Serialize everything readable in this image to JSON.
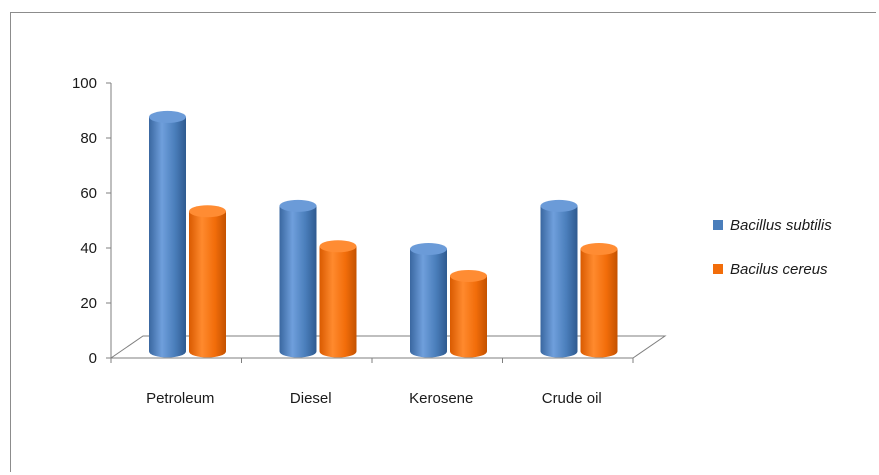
{
  "chart_data": {
    "type": "bar",
    "categories": [
      "Petroleum",
      "Diesel",
      "Kerosene",
      "Crude oil"
    ],
    "series": [
      {
        "name": "Bacillus subtilis",
        "values": [
          87,
          54,
          38,
          54
        ],
        "color": "#4a7ebb"
      },
      {
        "name": "Bacilus cereus",
        "values": [
          52,
          39,
          28,
          38
        ],
        "color": "#f26d0a"
      }
    ],
    "ylim": [
      0,
      100
    ],
    "yticks": [
      0,
      20,
      40,
      60,
      80,
      100
    ],
    "grid": false,
    "legend": "right",
    "style": "3d-cylinder"
  }
}
